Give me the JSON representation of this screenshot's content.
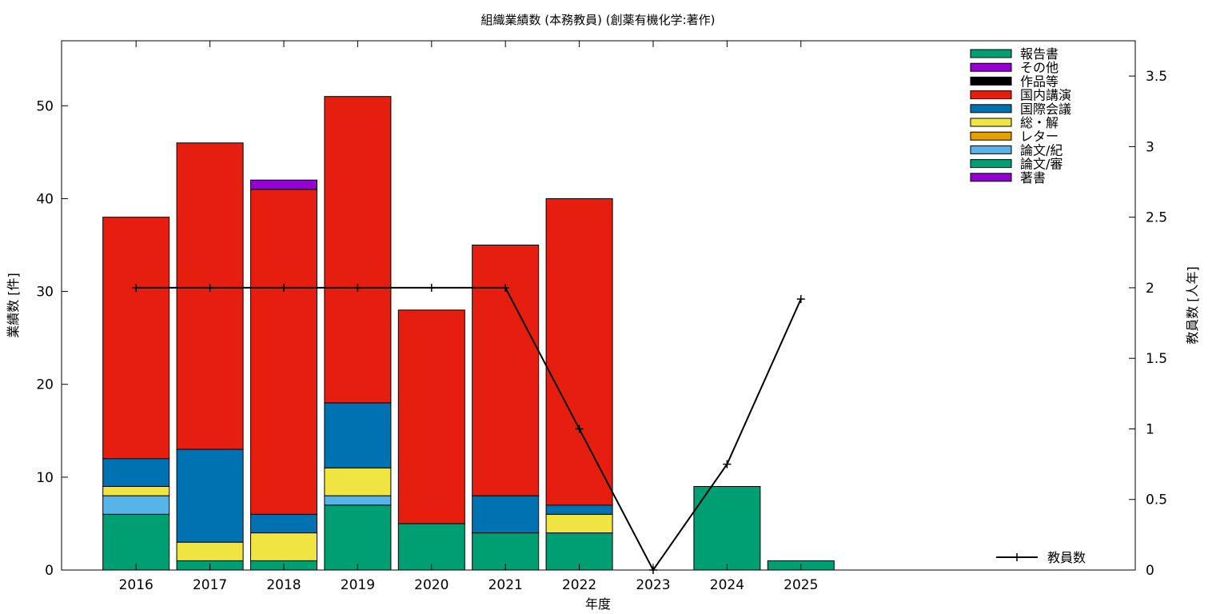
{
  "chart_data": {
    "type": "bar",
    "stacked": true,
    "title": "組織業績数 (本務教員) (創薬有機化学:著作)",
    "xlabel": "年度",
    "ylabel": "業績数 [件]",
    "y2label": "教員数 [人年]",
    "categories": [
      "2016",
      "2017",
      "2018",
      "2019",
      "2020",
      "2021",
      "2022",
      "2023",
      "2024",
      "2025"
    ],
    "ylim": [
      0,
      57
    ],
    "yticks": [
      0,
      10,
      20,
      30,
      40,
      50
    ],
    "y2lim": [
      0,
      3.75
    ],
    "y2ticks": [
      0,
      0.5,
      1,
      1.5,
      2,
      2.5,
      3,
      3.5
    ],
    "grid": false,
    "legend_position": "top-right",
    "series": [
      {
        "name": "著書",
        "color": "#9400d3",
        "values": [
          0,
          0,
          0,
          0,
          0,
          0,
          0,
          0,
          0,
          0
        ]
      },
      {
        "name": "論文/審",
        "color": "#009e73",
        "values": [
          6,
          1,
          1,
          7,
          5,
          4,
          4,
          0,
          0,
          0
        ]
      },
      {
        "name": "論文/紀",
        "color": "#56b4e9",
        "values": [
          2,
          0,
          0,
          1,
          0,
          0,
          0,
          0,
          0,
          0
        ]
      },
      {
        "name": "レター",
        "color": "#e69f00",
        "values": [
          0,
          0,
          0,
          0,
          0,
          0,
          0,
          0,
          0,
          0
        ]
      },
      {
        "name": "総・解",
        "color": "#f0e442",
        "values": [
          1,
          2,
          3,
          3,
          0,
          0,
          2,
          0,
          0,
          0
        ]
      },
      {
        "name": "国際会議",
        "color": "#0072b2",
        "values": [
          3,
          10,
          2,
          7,
          0,
          4,
          1,
          0,
          0,
          0
        ]
      },
      {
        "name": "国内講演",
        "color": "#e51e10",
        "values": [
          26,
          33,
          35,
          33,
          23,
          27,
          33,
          0,
          0,
          0
        ]
      },
      {
        "name": "作品等",
        "color": "#000000",
        "values": [
          0,
          0,
          0,
          0,
          0,
          0,
          0,
          0,
          0,
          0
        ]
      },
      {
        "name": "その他",
        "color": "#9400d3",
        "values": [
          0,
          0,
          1,
          0,
          0,
          0,
          0,
          0,
          0,
          0
        ]
      },
      {
        "name": "報告書",
        "color": "#009e73",
        "values": [
          0,
          0,
          0,
          0,
          0,
          0,
          0,
          0,
          9,
          1
        ]
      }
    ],
    "line_series": {
      "name": "教員数",
      "color": "#000000",
      "axis": "y2",
      "values": [
        2,
        2,
        2,
        2,
        2,
        2,
        1,
        0,
        0.75,
        1.92
      ]
    }
  }
}
